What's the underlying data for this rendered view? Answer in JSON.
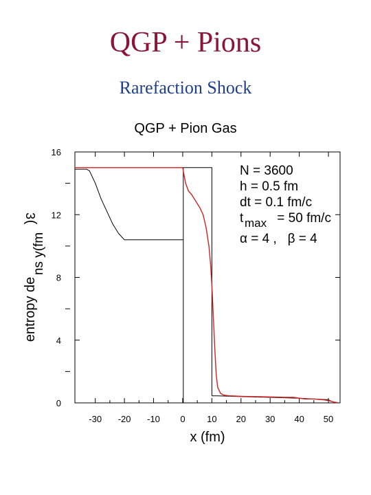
{
  "slide": {
    "title": "QGP + Pions",
    "subtitle": "Rarefaction Shock"
  },
  "colors": {
    "title": "#8b1538",
    "subtitle": "#1f3f8a",
    "exact": "#000000",
    "sph": "#d42020"
  },
  "chart_data": {
    "type": "line",
    "title": "QGP + Pion Gas",
    "xlabel": "x (fm)",
    "ylabel_main": "entropy de",
    "ylabel_sub": "ns y(fm",
    "ylabel_tail": ")",
    "ylabel_sym": "3",
    "xlim": [
      -37,
      54
    ],
    "ylim": [
      0,
      16
    ],
    "x_ticks": [
      -30,
      -20,
      -10,
      0,
      10,
      20,
      30,
      40,
      50
    ],
    "y_ticks": [
      0,
      4,
      8,
      12,
      16
    ],
    "grid": false,
    "annotations": [
      "N = 3600",
      "h = 0.5 fm",
      "dt = 0.1 fm/c",
      "t",
      "max",
      " = 50 fm/c",
      "α = 4 ,   β = 4"
    ],
    "series": [
      {
        "x": [
          -37,
          -35,
          -33,
          -32,
          -30,
          -28,
          -26,
          -24,
          -22,
          -20,
          -19,
          0,
          0.2,
          0.2,
          0.2,
          10,
          10,
          10,
          12,
          20,
          30,
          40,
          50,
          51,
          52,
          53
        ],
        "y": [
          14.9,
          14.9,
          14.9,
          14.8,
          14.0,
          13.0,
          12.2,
          11.4,
          10.8,
          10.4,
          10.4,
          10.4,
          10.4,
          0,
          15.0,
          15.0,
          10.4,
          0.45,
          0.45,
          0.4,
          0.35,
          0.3,
          0.2,
          0.1,
          0.05,
          0
        ]
      },
      {
        "x": [
          -37,
          -36,
          -35,
          -34,
          -33,
          -32,
          -31,
          -30,
          -29,
          -28,
          -27,
          -26,
          -25,
          -24,
          -23,
          -22,
          -21,
          -20,
          -18,
          -15,
          -12,
          -10,
          -8,
          -5,
          -3,
          -1,
          0,
          1,
          2,
          3,
          4,
          5,
          6,
          7,
          8,
          9,
          9.5,
          10,
          10.5,
          11,
          11.5,
          12,
          13,
          14,
          16,
          20,
          25,
          30,
          35,
          38,
          40,
          42,
          45,
          48,
          50,
          52,
          53
        ],
        "y": [
          15.0,
          15.0,
          15.0,
          15.0,
          15.0,
          15.0,
          15.0,
          15.0,
          15.0,
          15.0,
          15.0,
          15.0,
          15.0,
          15.0,
          15.0,
          15.0,
          15.0,
          15.0,
          15.0,
          15.0,
          15.0,
          15.0,
          15.0,
          15.0,
          15.0,
          15.0,
          15.0,
          14.0,
          13.5,
          13.3,
          13.0,
          12.7,
          12.4,
          12.0,
          11.2,
          10.0,
          9.0,
          7.5,
          5.5,
          3.5,
          1.8,
          1.0,
          0.6,
          0.5,
          0.45,
          0.42,
          0.4,
          0.38,
          0.35,
          0.35,
          0.3,
          0.25,
          0.25,
          0.2,
          0.15,
          0.05,
          0.02
        ]
      }
    ]
  }
}
